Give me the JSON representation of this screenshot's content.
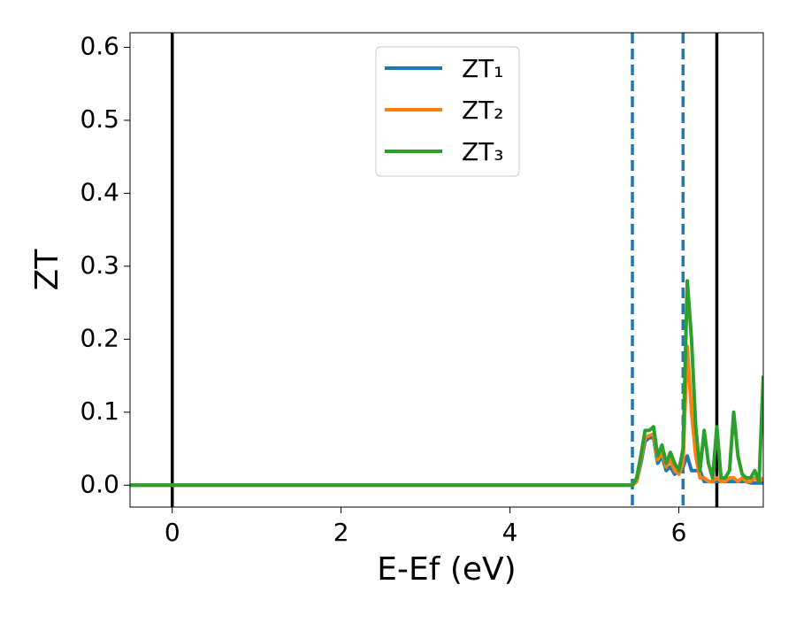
{
  "chart_data": {
    "type": "line",
    "x_label": "E-Ef (eV)",
    "y_label": "ZT",
    "x": [
      -0.5,
      5.45,
      5.5,
      5.55,
      5.6,
      5.65,
      5.7,
      5.75,
      5.8,
      5.85,
      5.9,
      5.95,
      6.0,
      6.05,
      6.1,
      6.15,
      6.2,
      6.25,
      6.3,
      6.35,
      6.4,
      6.45,
      6.5,
      6.55,
      6.6,
      6.65,
      6.7,
      6.75,
      6.8,
      6.85,
      6.9,
      6.95,
      7.0
    ],
    "series": [
      {
        "name": "ZT₁",
        "color": "#1f77b4",
        "values": [
          0,
          0,
          0.005,
          0.03,
          0.06,
          0.065,
          0.065,
          0.03,
          0.04,
          0.02,
          0.025,
          0.015,
          0.02,
          0.025,
          0.04,
          0.02,
          0.02,
          0.02,
          0.005,
          0.005,
          0.005,
          0.005,
          0.005,
          0.005,
          0.005,
          0.005,
          0.005,
          0.005,
          0.005,
          0.003,
          0.003,
          0.003,
          0.003
        ]
      },
      {
        "name": "ZT₂",
        "color": "#ff7f0e",
        "values": [
          0,
          0,
          0.005,
          0.035,
          0.065,
          0.068,
          0.07,
          0.035,
          0.045,
          0.025,
          0.035,
          0.02,
          0.015,
          0.03,
          0.19,
          0.1,
          0.04,
          0.01,
          0.01,
          0.005,
          0.005,
          0.01,
          0.005,
          0.005,
          0.01,
          0.01,
          0.005,
          0.01,
          0.005,
          0.005,
          0.01,
          0.005,
          0.01
        ]
      },
      {
        "name": "ZT₃",
        "color": "#2ca02c",
        "values": [
          0,
          0,
          0.01,
          0.04,
          0.075,
          0.075,
          0.08,
          0.04,
          0.055,
          0.03,
          0.045,
          0.03,
          0.02,
          0.05,
          0.28,
          0.2,
          0.08,
          0.02,
          0.075,
          0.03,
          0.01,
          0.08,
          0.01,
          0.01,
          0.02,
          0.1,
          0.04,
          0.015,
          0.01,
          0.01,
          0.02,
          0.005,
          0.15
        ]
      }
    ],
    "vlines": [
      {
        "x": 0,
        "color": "#000000",
        "dashed": false
      },
      {
        "x": 6.45,
        "color": "#000000",
        "dashed": false
      },
      {
        "x": 5.45,
        "color": "#1f77b4",
        "dashed": true
      },
      {
        "x": 6.05,
        "color": "#1f77b4",
        "dashed": true
      }
    ],
    "xlim": [
      -0.5,
      7
    ],
    "ylim": [
      -0.03,
      0.62
    ],
    "xticks": [
      0,
      2,
      4,
      6
    ],
    "yticks": [
      {
        "value": 0,
        "label": "0.0"
      },
      0.1,
      0.2,
      0.3,
      0.4,
      0.5,
      0.6
    ],
    "legend": "upper-center",
    "grid": false
  }
}
